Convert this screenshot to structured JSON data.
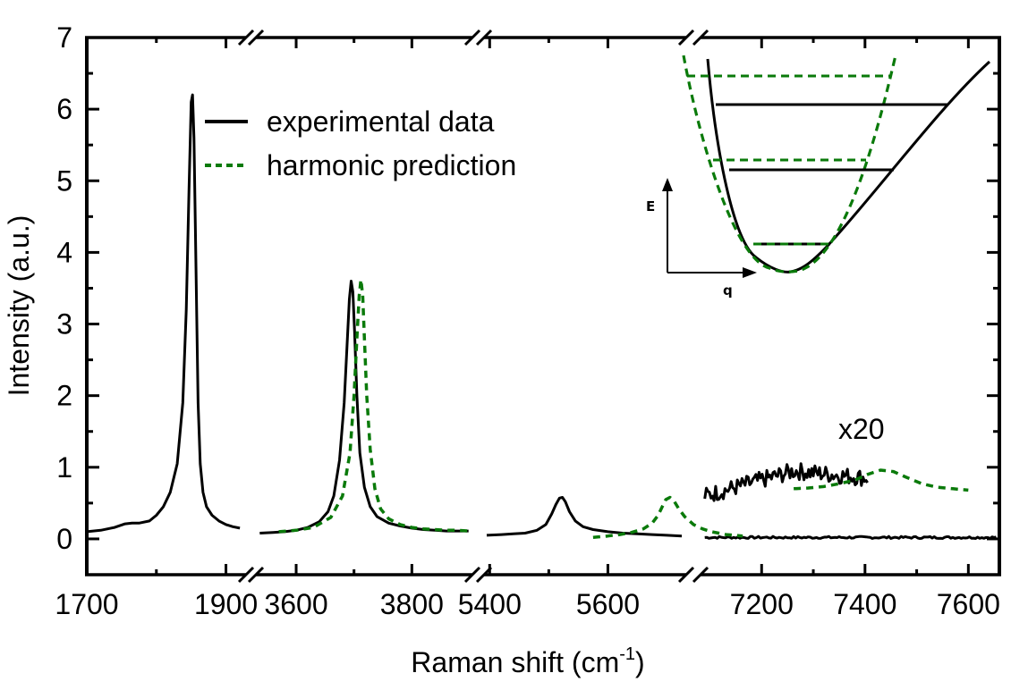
{
  "chart_data": {
    "type": "line",
    "title": "",
    "xlabel": "Raman shift (cm",
    "xlabel_sup": "-1",
    "xlabel_close": ")",
    "ylabel": "Intensity (a.u.)",
    "ylim": [
      -0.5,
      7
    ],
    "yticks": [
      0,
      1,
      2,
      3,
      4,
      5,
      6,
      7
    ],
    "grid": false,
    "broken_x_axis": true,
    "x_segments": [
      {
        "range": [
          1700,
          1925
        ],
        "major_ticks": [
          1700,
          1900
        ],
        "minor_ticks": [
          1800
        ],
        "tick_labels": [
          "1700",
          "1900"
        ]
      },
      {
        "range": [
          3535,
          3900
        ],
        "major_ticks": [
          3600,
          3800
        ],
        "minor_ticks": [
          3700
        ],
        "tick_labels": [
          "3600",
          "3800"
        ]
      },
      {
        "range": [
          5395,
          5728
        ],
        "major_ticks": [
          5400,
          5600
        ],
        "minor_ticks": [
          5500
        ],
        "tick_labels": [
          "5400",
          "5600"
        ]
      },
      {
        "range": [
          7087,
          7660
        ],
        "major_ticks": [
          7200,
          7400,
          7600
        ],
        "minor_ticks": [
          7300,
          7500
        ],
        "tick_labels": [
          "7200",
          "7400",
          "7600"
        ]
      }
    ],
    "legend": {
      "position": "top-left",
      "entries": [
        {
          "label": "experimental data",
          "style": "solid",
          "color": "#000000"
        },
        {
          "label": "harmonic prediction",
          "style": "dashed",
          "color": "#0a7a0a"
        }
      ]
    },
    "annotations": [
      {
        "text": "x20",
        "segment": 3,
        "near_x": 7460,
        "near_y": 1.35
      }
    ],
    "series": [
      {
        "name": "experimental data",
        "color": "#000000",
        "segments": [
          {
            "segment": 0,
            "x": [
              1700,
              1720,
              1740,
              1755,
              1765,
              1775,
              1790,
              1800,
              1810,
              1820,
              1830,
              1838,
              1843,
              1847,
              1850,
              1852,
              1854,
              1856,
              1858,
              1860,
              1863,
              1867,
              1872,
              1880,
              1890,
              1900,
              1910,
              1920
            ],
            "y": [
              0.1,
              0.12,
              0.16,
              0.21,
              0.22,
              0.22,
              0.25,
              0.33,
              0.45,
              0.65,
              1.05,
              1.9,
              3.2,
              4.9,
              6.1,
              6.2,
              5.6,
              4.4,
              3.1,
              1.9,
              1.05,
              0.65,
              0.45,
              0.33,
              0.25,
              0.2,
              0.17,
              0.15
            ]
          },
          {
            "segment": 1,
            "x": [
              3537,
              3560,
              3580,
              3600,
              3620,
              3640,
              3655,
              3665,
              3675,
              3683,
              3688,
              3692,
              3695,
              3698,
              3701,
              3705,
              3710,
              3718,
              3728,
              3740,
              3760,
              3780,
              3800,
              3820,
              3840,
              3860,
              3880,
              3898
            ],
            "y": [
              0.08,
              0.09,
              0.1,
              0.12,
              0.16,
              0.24,
              0.38,
              0.6,
              1.1,
              1.9,
              2.7,
              3.35,
              3.6,
              3.45,
              2.9,
              2.0,
              1.2,
              0.72,
              0.45,
              0.31,
              0.22,
              0.18,
              0.15,
              0.13,
              0.12,
              0.11,
              0.11,
              0.11
            ]
          },
          {
            "segment": 2,
            "x": [
              5395,
              5420,
              5440,
              5460,
              5480,
              5495,
              5505,
              5512,
              5518,
              5523,
              5528,
              5535,
              5545,
              5558,
              5575,
              5600,
              5625,
              5650,
              5675,
              5700,
              5725
            ],
            "y": [
              0.05,
              0.06,
              0.07,
              0.08,
              0.12,
              0.2,
              0.35,
              0.48,
              0.57,
              0.58,
              0.52,
              0.38,
              0.25,
              0.17,
              0.13,
              0.1,
              0.08,
              0.07,
              0.06,
              0.05,
              0.04
            ]
          },
          {
            "segment": 3,
            "x_start": 7090,
            "x_end": 7655,
            "baseline_y": 0.02
          },
          {
            "segment": 3,
            "label": "x20",
            "x_start": 7090,
            "x_end": 7405,
            "noisy_mean_y": [
              0.6,
              0.95,
              0.85
            ],
            "noise_amp": 0.12
          }
        ]
      },
      {
        "name": "harmonic prediction",
        "color": "#0a7a0a",
        "segments": [
          {
            "segment": 1,
            "x": [
              3570,
              3600,
              3630,
              3660,
              3680,
              3693,
              3700,
              3705,
              3709,
              3712,
              3715,
              3718,
              3722,
              3728,
              3736,
              3746,
              3760,
              3780,
              3800,
              3820,
              3840,
              3860,
              3880,
              3898
            ],
            "y": [
              0.1,
              0.12,
              0.16,
              0.3,
              0.6,
              1.2,
              2.0,
              2.8,
              3.4,
              3.62,
              3.4,
              2.8,
              2.0,
              1.25,
              0.7,
              0.42,
              0.28,
              0.2,
              0.16,
              0.14,
              0.13,
              0.12,
              0.12,
              0.11
            ]
          },
          {
            "segment": 2,
            "x": [
              5575,
              5600,
              5620,
              5640,
              5660,
              5675,
              5685,
              5692,
              5698,
              5705,
              5712,
              5720,
              5730,
              5745,
              5760,
              5775,
              5800,
              5828
            ],
            "y": [
              0.02,
              0.04,
              0.06,
              0.09,
              0.14,
              0.22,
              0.33,
              0.45,
              0.55,
              0.58,
              0.53,
              0.42,
              0.31,
              0.2,
              0.14,
              0.1,
              0.06,
              0.04
            ]
          },
          {
            "segment": 3,
            "x": [
              7262,
              7290,
              7320,
              7350,
              7380,
              7405,
              7430,
              7455,
              7480,
              7510,
              7540,
              7570,
              7600
            ],
            "y": [
              0.7,
              0.71,
              0.73,
              0.77,
              0.82,
              0.9,
              0.96,
              0.94,
              0.86,
              0.77,
              0.72,
              0.7,
              0.68
            ]
          }
        ]
      }
    ]
  },
  "inset": {
    "description": "potential energy curve diagram",
    "y_axis_label": "E",
    "x_axis_label": "q",
    "anharmonic_levels": 3,
    "harmonic_levels": 3,
    "anharmonic_color": "#000000",
    "harmonic_color": "#0a7a0a"
  }
}
